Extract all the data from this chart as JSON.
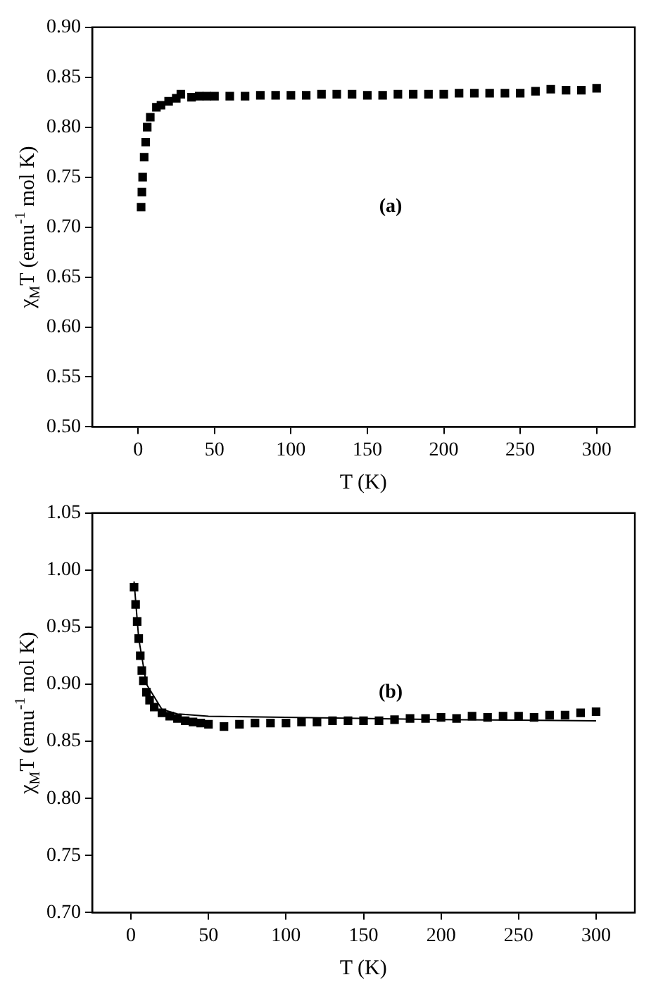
{
  "chart_data": [
    {
      "type": "scatter",
      "xlabel": "T (K)",
      "ylabel": "χ$_{M}$T (emu$^{-1}$ mol K)",
      "xlim": [
        -30,
        325
      ],
      "xticks": [
        0,
        50,
        100,
        150,
        200,
        250,
        300
      ],
      "ylim": [
        0.5,
        0.9
      ],
      "yticks": [
        {
          "value": 0.5,
          "label": "0.50"
        },
        0.55,
        {
          "value": 0.6,
          "label": "0.60"
        },
        0.65,
        {
          "value": 0.7,
          "label": "0.70"
        },
        0.75,
        {
          "value": 0.8,
          "label": "0.80"
        },
        0.85,
        {
          "value": 0.9,
          "label": "0.90"
        }
      ],
      "grid": false,
      "annotations": [
        "(a)"
      ],
      "series": [
        {
          "color": "#000000",
          "marker": "square",
          "x": [
            2,
            2.5,
            3,
            4,
            5,
            6,
            8,
            12,
            15,
            20,
            25,
            28,
            35,
            40,
            45,
            50,
            60,
            70,
            80,
            90,
            100,
            110,
            120,
            130,
            140,
            150,
            160,
            170,
            180,
            190,
            200,
            210,
            220,
            230,
            240,
            250,
            260,
            270,
            280,
            290,
            300
          ],
          "values": [
            0.72,
            0.735,
            0.75,
            0.77,
            0.785,
            0.8,
            0.81,
            0.82,
            0.822,
            0.826,
            0.829,
            0.833,
            0.83,
            0.831,
            0.831,
            0.831,
            0.831,
            0.831,
            0.832,
            0.832,
            0.832,
            0.832,
            0.833,
            0.833,
            0.833,
            0.832,
            0.832,
            0.833,
            0.833,
            0.833,
            0.833,
            0.834,
            0.834,
            0.834,
            0.834,
            0.834,
            0.836,
            0.838,
            0.837,
            0.837,
            0.839
          ]
        }
      ]
    },
    {
      "type": "scatter",
      "xlabel": "T (K)",
      "ylabel": "χ$_{M}$T (emu$^{-1}$ mol K)",
      "xlim": [
        -25,
        325
      ],
      "xticks": [
        0,
        50,
        100,
        150,
        200,
        250,
        300
      ],
      "ylim": [
        0.7,
        1.05
      ],
      "yticks": [
        {
          "value": 0.7,
          "label": "0.70"
        },
        0.75,
        {
          "value": 0.8,
          "label": "0.80"
        },
        0.85,
        {
          "value": 0.9,
          "label": "0.90"
        },
        0.95,
        {
          "value": 1.0,
          "label": "1.00"
        },
        1.05
      ],
      "grid": false,
      "annotations": [
        "(b)"
      ],
      "series": [
        {
          "color": "#000000",
          "marker": "square",
          "x": [
            2,
            3,
            4,
            5,
            6,
            7,
            8,
            10,
            12,
            15,
            20,
            25,
            30,
            35,
            40,
            45,
            50,
            60,
            70,
            80,
            90,
            100,
            110,
            120,
            130,
            140,
            150,
            160,
            170,
            180,
            190,
            200,
            210,
            220,
            230,
            240,
            250,
            260,
            270,
            280,
            290,
            300
          ],
          "values": [
            0.985,
            0.97,
            0.955,
            0.94,
            0.925,
            0.912,
            0.903,
            0.893,
            0.886,
            0.88,
            0.875,
            0.872,
            0.87,
            0.868,
            0.867,
            0.866,
            0.865,
            0.863,
            0.865,
            0.866,
            0.866,
            0.866,
            0.867,
            0.867,
            0.868,
            0.868,
            0.868,
            0.868,
            0.869,
            0.87,
            0.87,
            0.871,
            0.87,
            0.872,
            0.871,
            0.872,
            0.872,
            0.871,
            0.873,
            0.873,
            0.875,
            0.876
          ]
        },
        {
          "type": "line",
          "color": "#000000",
          "marker": "none",
          "x": [
            2,
            5,
            10,
            20,
            30,
            50,
            100,
            200,
            300
          ],
          "values": [
            0.99,
            0.94,
            0.9,
            0.878,
            0.874,
            0.872,
            0.871,
            0.869,
            0.868
          ]
        }
      ]
    }
  ]
}
